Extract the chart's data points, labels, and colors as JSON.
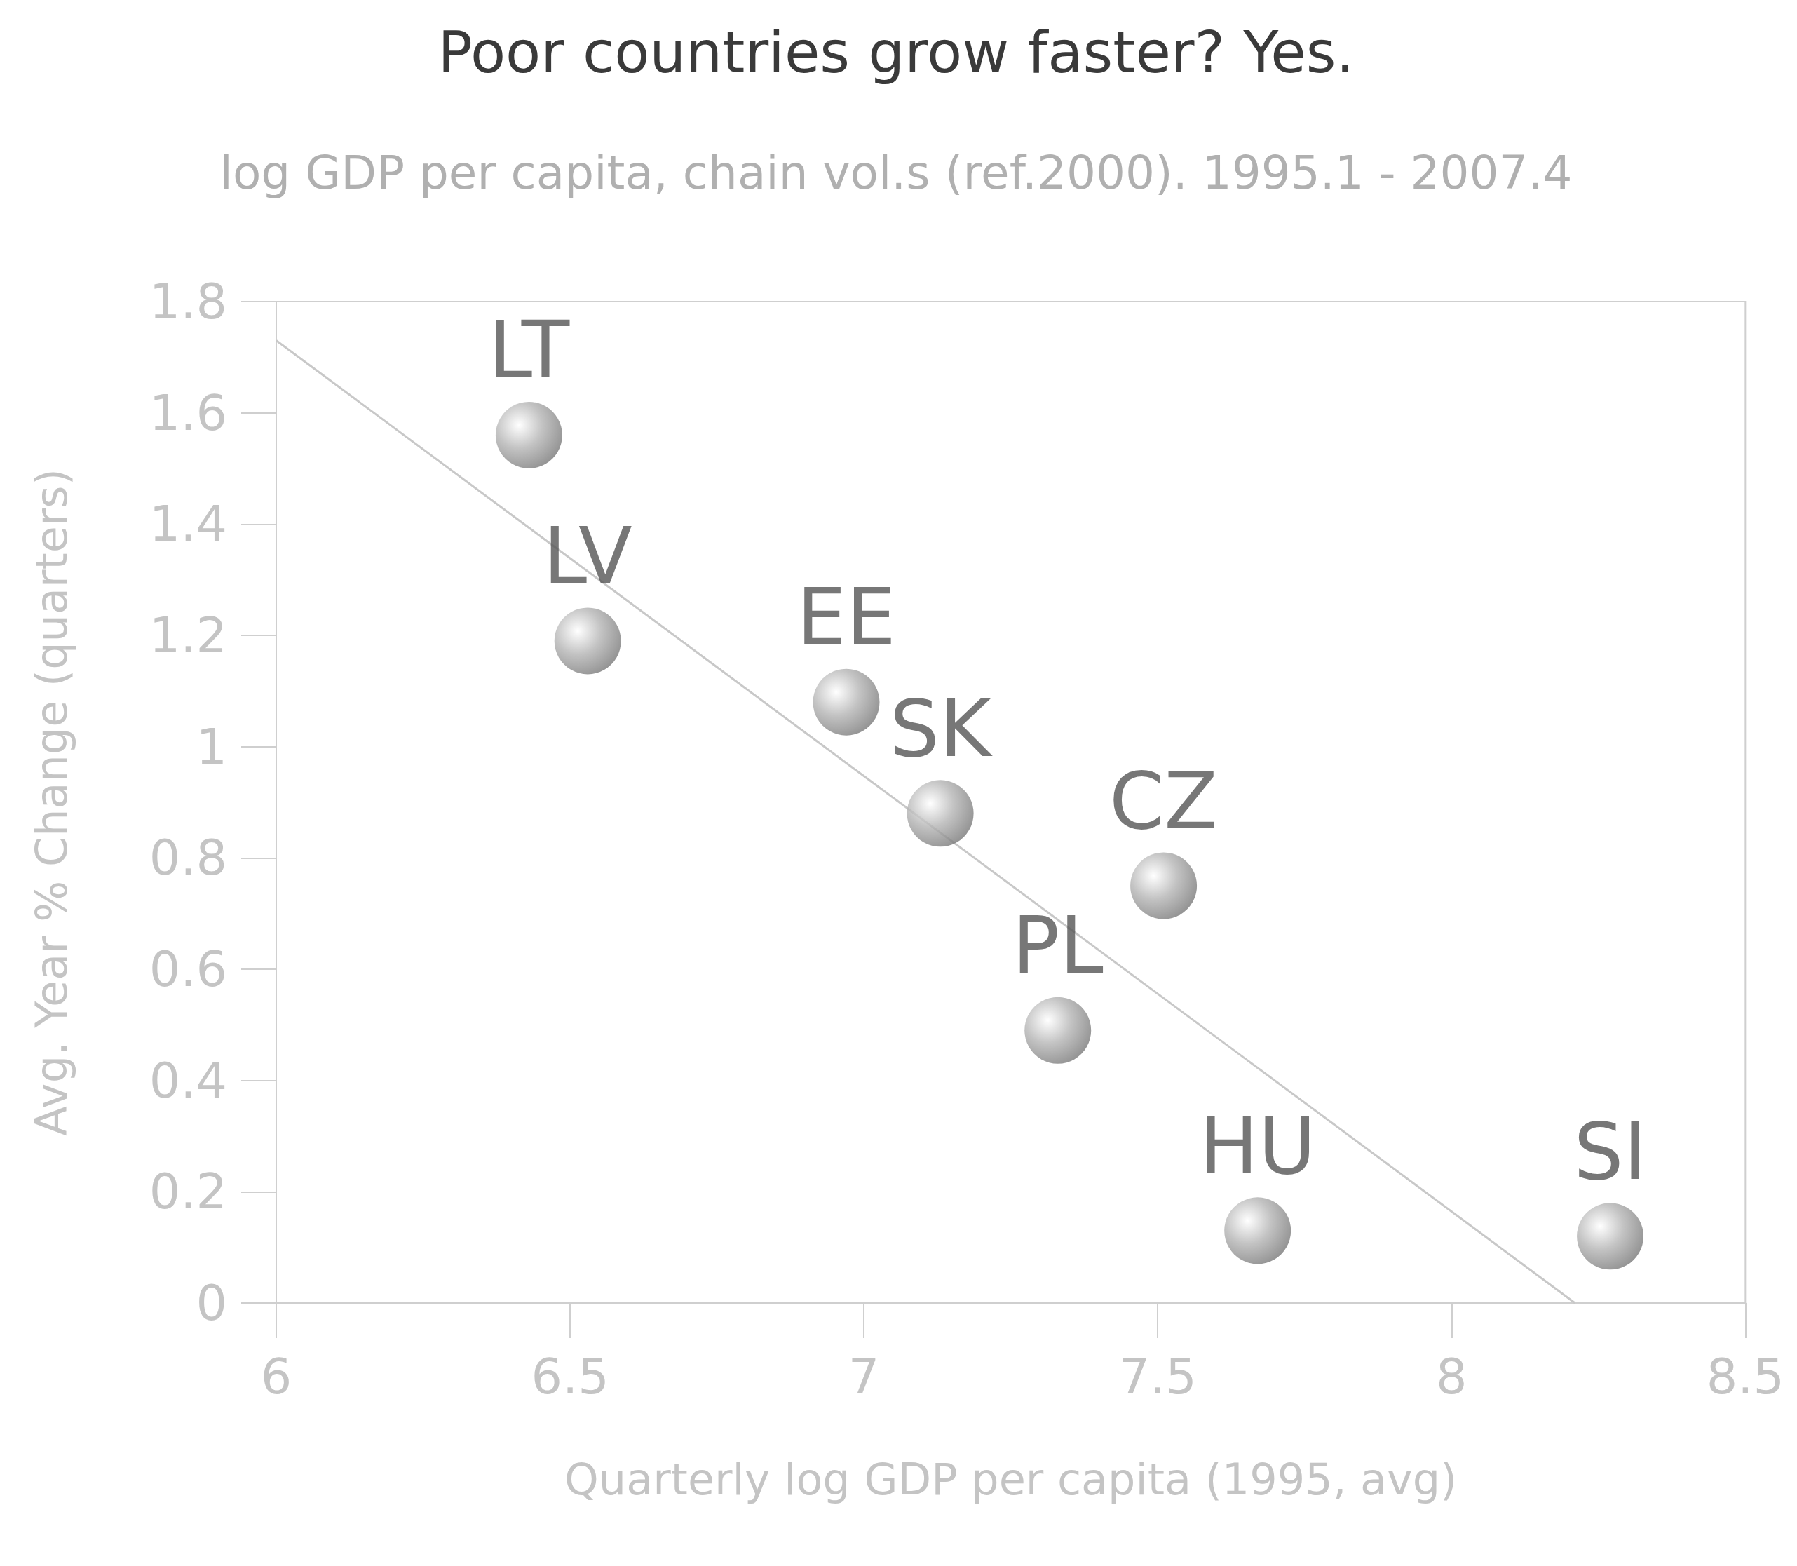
{
  "chart_data": {
    "type": "scatter",
    "title": "Poor countries grow faster? Yes.",
    "subtitle": "log GDP per capita, chain vol.s (ref.2000). 1995.1 - 2007.4",
    "xlabel": "Quarterly log GDP per capita (1995, avg)",
    "ylabel": "Avg. Year % Change (quarters)",
    "series": [
      {
        "color": "#b4b4b4",
        "marker": "circle",
        "x": [
          6.43,
          6.53,
          6.97,
          7.13,
          7.51,
          7.33,
          7.67,
          8.27
        ],
        "values": [
          1.56,
          1.19,
          1.08,
          0.88,
          0.75,
          0.49,
          0.13,
          0.12
        ]
      },
      {
        "type": "line",
        "color": "#c8c8c8",
        "x": [
          6,
          8.21
        ],
        "values": [
          1.73,
          0
        ]
      }
    ],
    "annotations": [
      {
        "text": "LT",
        "x": 6.43,
        "y": 1.56
      },
      {
        "text": "LV",
        "x": 6.53,
        "y": 1.19
      },
      {
        "text": "EE",
        "x": 6.97,
        "y": 1.08
      },
      {
        "text": "SK",
        "x": 7.13,
        "y": 0.88
      },
      {
        "text": "CZ",
        "x": 7.51,
        "y": 0.75
      },
      {
        "text": "PL",
        "x": 7.33,
        "y": 0.49
      },
      {
        "text": "HU",
        "x": 7.67,
        "y": 0.13
      },
      {
        "text": "SI",
        "x": 8.27,
        "y": 0.12
      }
    ],
    "xlim": [
      6,
      8.5
    ],
    "xticks": [
      6,
      6.5,
      7,
      7.5,
      8,
      8.5
    ],
    "ylim": [
      0,
      1.8
    ],
    "yticks": [
      0,
      0.2,
      0.4,
      0.6,
      0.8,
      1,
      1.2,
      1.4,
      1.6,
      1.8
    ],
    "grid": false
  }
}
